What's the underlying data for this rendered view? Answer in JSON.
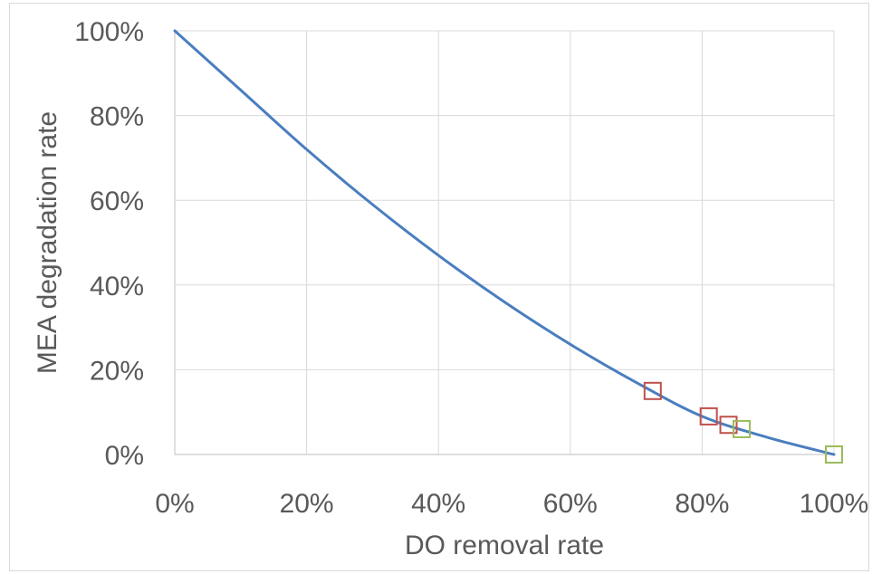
{
  "chart_data": {
    "type": "line",
    "title": "",
    "xlabel": "DO removal rate",
    "ylabel": "MEA degradation rate",
    "xlim": [
      0,
      100
    ],
    "ylim": [
      0,
      100
    ],
    "x_ticks": [
      0,
      20,
      40,
      60,
      80,
      100
    ],
    "y_ticks": [
      0,
      20,
      40,
      60,
      80,
      100
    ],
    "x_tick_labels": [
      "0%",
      "20%",
      "40%",
      "60%",
      "80%",
      "100%"
    ],
    "y_tick_labels": [
      "0%",
      "20%",
      "40%",
      "60%",
      "80%",
      "100%"
    ],
    "grid": true,
    "legend": "none",
    "series": [
      {
        "type": "line",
        "color": "#4a7ebf",
        "x": [
          0,
          10,
          20,
          30,
          40,
          50,
          60,
          70,
          80,
          90,
          100
        ],
        "y": [
          100,
          86,
          72,
          59,
          47,
          36,
          26,
          17,
          9,
          4,
          0
        ]
      },
      {
        "type": "scatter",
        "marker": "open-square",
        "color": "#c0504d",
        "x": [
          72.5,
          81,
          84
        ],
        "y": [
          15,
          9,
          7
        ]
      },
      {
        "type": "scatter",
        "marker": "open-square",
        "color": "#9bbb59",
        "x": [
          86,
          100
        ],
        "y": [
          6,
          0
        ]
      }
    ]
  }
}
